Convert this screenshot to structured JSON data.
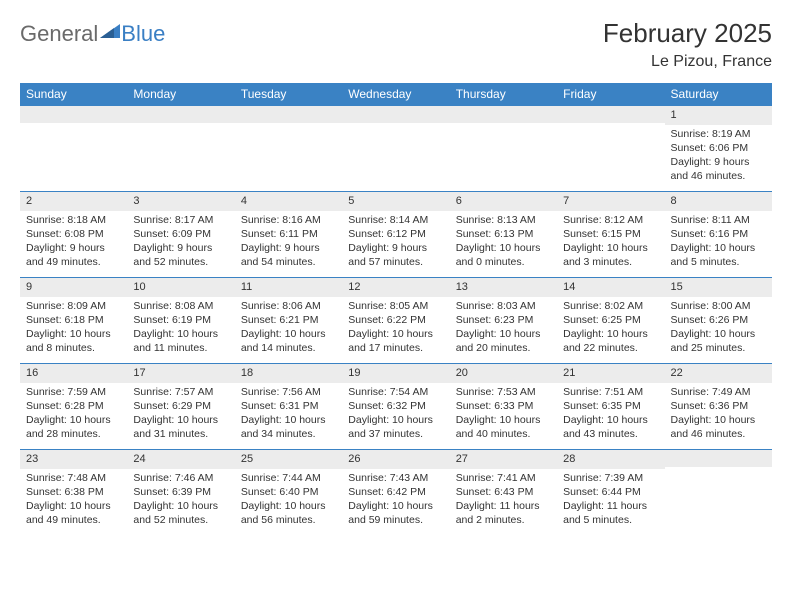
{
  "logo": {
    "word1": "General",
    "word2": "Blue"
  },
  "title": "February 2025",
  "location": "Le Pizou, France",
  "colors": {
    "header_bg": "#3a82c4",
    "header_text": "#ffffff",
    "daynum_bg": "#ececec",
    "border": "#3a82c4",
    "text": "#333333",
    "logo_gray": "#6a6a6a",
    "logo_blue": "#3a7fc4"
  },
  "weekdays": [
    "Sunday",
    "Monday",
    "Tuesday",
    "Wednesday",
    "Thursday",
    "Friday",
    "Saturday"
  ],
  "weeks": [
    [
      {
        "n": "",
        "sr": "",
        "ss": "",
        "dl": ""
      },
      {
        "n": "",
        "sr": "",
        "ss": "",
        "dl": ""
      },
      {
        "n": "",
        "sr": "",
        "ss": "",
        "dl": ""
      },
      {
        "n": "",
        "sr": "",
        "ss": "",
        "dl": ""
      },
      {
        "n": "",
        "sr": "",
        "ss": "",
        "dl": ""
      },
      {
        "n": "",
        "sr": "",
        "ss": "",
        "dl": ""
      },
      {
        "n": "1",
        "sr": "Sunrise: 8:19 AM",
        "ss": "Sunset: 6:06 PM",
        "dl": "Daylight: 9 hours and 46 minutes."
      }
    ],
    [
      {
        "n": "2",
        "sr": "Sunrise: 8:18 AM",
        "ss": "Sunset: 6:08 PM",
        "dl": "Daylight: 9 hours and 49 minutes."
      },
      {
        "n": "3",
        "sr": "Sunrise: 8:17 AM",
        "ss": "Sunset: 6:09 PM",
        "dl": "Daylight: 9 hours and 52 minutes."
      },
      {
        "n": "4",
        "sr": "Sunrise: 8:16 AM",
        "ss": "Sunset: 6:11 PM",
        "dl": "Daylight: 9 hours and 54 minutes."
      },
      {
        "n": "5",
        "sr": "Sunrise: 8:14 AM",
        "ss": "Sunset: 6:12 PM",
        "dl": "Daylight: 9 hours and 57 minutes."
      },
      {
        "n": "6",
        "sr": "Sunrise: 8:13 AM",
        "ss": "Sunset: 6:13 PM",
        "dl": "Daylight: 10 hours and 0 minutes."
      },
      {
        "n": "7",
        "sr": "Sunrise: 8:12 AM",
        "ss": "Sunset: 6:15 PM",
        "dl": "Daylight: 10 hours and 3 minutes."
      },
      {
        "n": "8",
        "sr": "Sunrise: 8:11 AM",
        "ss": "Sunset: 6:16 PM",
        "dl": "Daylight: 10 hours and 5 minutes."
      }
    ],
    [
      {
        "n": "9",
        "sr": "Sunrise: 8:09 AM",
        "ss": "Sunset: 6:18 PM",
        "dl": "Daylight: 10 hours and 8 minutes."
      },
      {
        "n": "10",
        "sr": "Sunrise: 8:08 AM",
        "ss": "Sunset: 6:19 PM",
        "dl": "Daylight: 10 hours and 11 minutes."
      },
      {
        "n": "11",
        "sr": "Sunrise: 8:06 AM",
        "ss": "Sunset: 6:21 PM",
        "dl": "Daylight: 10 hours and 14 minutes."
      },
      {
        "n": "12",
        "sr": "Sunrise: 8:05 AM",
        "ss": "Sunset: 6:22 PM",
        "dl": "Daylight: 10 hours and 17 minutes."
      },
      {
        "n": "13",
        "sr": "Sunrise: 8:03 AM",
        "ss": "Sunset: 6:23 PM",
        "dl": "Daylight: 10 hours and 20 minutes."
      },
      {
        "n": "14",
        "sr": "Sunrise: 8:02 AM",
        "ss": "Sunset: 6:25 PM",
        "dl": "Daylight: 10 hours and 22 minutes."
      },
      {
        "n": "15",
        "sr": "Sunrise: 8:00 AM",
        "ss": "Sunset: 6:26 PM",
        "dl": "Daylight: 10 hours and 25 minutes."
      }
    ],
    [
      {
        "n": "16",
        "sr": "Sunrise: 7:59 AM",
        "ss": "Sunset: 6:28 PM",
        "dl": "Daylight: 10 hours and 28 minutes."
      },
      {
        "n": "17",
        "sr": "Sunrise: 7:57 AM",
        "ss": "Sunset: 6:29 PM",
        "dl": "Daylight: 10 hours and 31 minutes."
      },
      {
        "n": "18",
        "sr": "Sunrise: 7:56 AM",
        "ss": "Sunset: 6:31 PM",
        "dl": "Daylight: 10 hours and 34 minutes."
      },
      {
        "n": "19",
        "sr": "Sunrise: 7:54 AM",
        "ss": "Sunset: 6:32 PM",
        "dl": "Daylight: 10 hours and 37 minutes."
      },
      {
        "n": "20",
        "sr": "Sunrise: 7:53 AM",
        "ss": "Sunset: 6:33 PM",
        "dl": "Daylight: 10 hours and 40 minutes."
      },
      {
        "n": "21",
        "sr": "Sunrise: 7:51 AM",
        "ss": "Sunset: 6:35 PM",
        "dl": "Daylight: 10 hours and 43 minutes."
      },
      {
        "n": "22",
        "sr": "Sunrise: 7:49 AM",
        "ss": "Sunset: 6:36 PM",
        "dl": "Daylight: 10 hours and 46 minutes."
      }
    ],
    [
      {
        "n": "23",
        "sr": "Sunrise: 7:48 AM",
        "ss": "Sunset: 6:38 PM",
        "dl": "Daylight: 10 hours and 49 minutes."
      },
      {
        "n": "24",
        "sr": "Sunrise: 7:46 AM",
        "ss": "Sunset: 6:39 PM",
        "dl": "Daylight: 10 hours and 52 minutes."
      },
      {
        "n": "25",
        "sr": "Sunrise: 7:44 AM",
        "ss": "Sunset: 6:40 PM",
        "dl": "Daylight: 10 hours and 56 minutes."
      },
      {
        "n": "26",
        "sr": "Sunrise: 7:43 AM",
        "ss": "Sunset: 6:42 PM",
        "dl": "Daylight: 10 hours and 59 minutes."
      },
      {
        "n": "27",
        "sr": "Sunrise: 7:41 AM",
        "ss": "Sunset: 6:43 PM",
        "dl": "Daylight: 11 hours and 2 minutes."
      },
      {
        "n": "28",
        "sr": "Sunrise: 7:39 AM",
        "ss": "Sunset: 6:44 PM",
        "dl": "Daylight: 11 hours and 5 minutes."
      },
      {
        "n": "",
        "sr": "",
        "ss": "",
        "dl": ""
      }
    ]
  ]
}
